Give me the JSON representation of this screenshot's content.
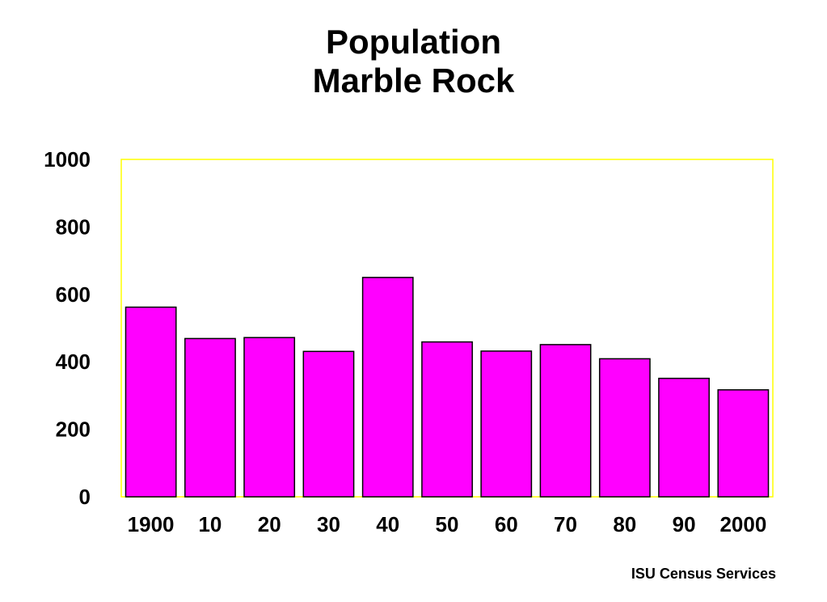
{
  "chart_data": {
    "type": "bar",
    "title": [
      "Population",
      "Marble Rock"
    ],
    "categories": [
      "1900",
      "10",
      "20",
      "30",
      "40",
      "50",
      "60",
      "70",
      "80",
      "90",
      "2000"
    ],
    "values": [
      562,
      469,
      472,
      431,
      650,
      459,
      432,
      451,
      409,
      351,
      317
    ],
    "yticks": [
      "0",
      "200",
      "400",
      "600",
      "800",
      "1000"
    ],
    "ylim": [
      0,
      1000
    ],
    "grid": false,
    "legend": "none",
    "colors": {
      "bar_fill": "#FF00FF",
      "bar_stroke": "#000000",
      "plot_border": "#FFFF00"
    }
  },
  "footer": {
    "source": "ISU Census Services"
  }
}
